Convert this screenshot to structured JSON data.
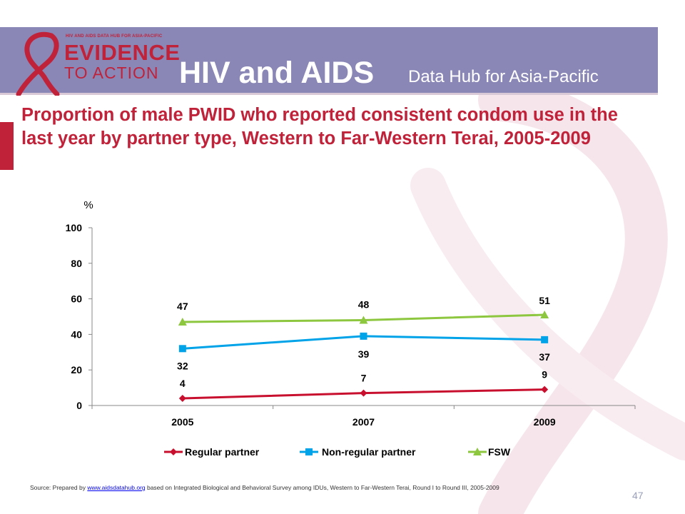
{
  "header": {
    "logo_top": "HIV AND AIDS DATA HUB FOR ASIA-PACIFIC",
    "logo_main": "EVIDENCE",
    "logo_sub": "TO ACTION",
    "title": "HIV and AIDS",
    "subtitle": "Data Hub for Asia-Pacific"
  },
  "slide": {
    "title": "Proportion of male PWID who reported consistent condom use in the last year by partner type, Western to Far-Western Terai, 2005-2009",
    "page_number": "47"
  },
  "source": {
    "prefix": "Source: Prepared by ",
    "link": "www.aidsdatahub.org",
    "suffix": " based on Integrated Biological and Behavioral Survey among IDUs, Western to Far-Western Terai, Round I to Round III, 2005-2009"
  },
  "colors": {
    "banner": "#8a87b7",
    "brand_red": "#c0223a",
    "regular": "#c8102e",
    "non_regular": "#00a2e8",
    "fsw": "#8dc63f"
  },
  "chart_data": {
    "type": "line",
    "ylabel": "%",
    "ylim": [
      0,
      100
    ],
    "yticks": [
      "0",
      "20",
      "40",
      "60",
      "80",
      "100"
    ],
    "categories": [
      "2005",
      "2007",
      "2009"
    ],
    "legend_position": "bottom",
    "grid": false,
    "series": [
      {
        "name": "Regular partner",
        "values": [
          4,
          7,
          9
        ],
        "labels": [
          "4",
          "7",
          "9"
        ],
        "color": "#c8102e",
        "marker": "diamond"
      },
      {
        "name": "Non-regular partner",
        "values": [
          32,
          39,
          37
        ],
        "labels": [
          "32",
          "39",
          "37"
        ],
        "color": "#00a2e8",
        "marker": "square"
      },
      {
        "name": "FSW",
        "values": [
          47,
          48,
          51
        ],
        "labels": [
          "47",
          "48",
          "51"
        ],
        "color": "#8dc63f",
        "marker": "triangle"
      }
    ]
  }
}
